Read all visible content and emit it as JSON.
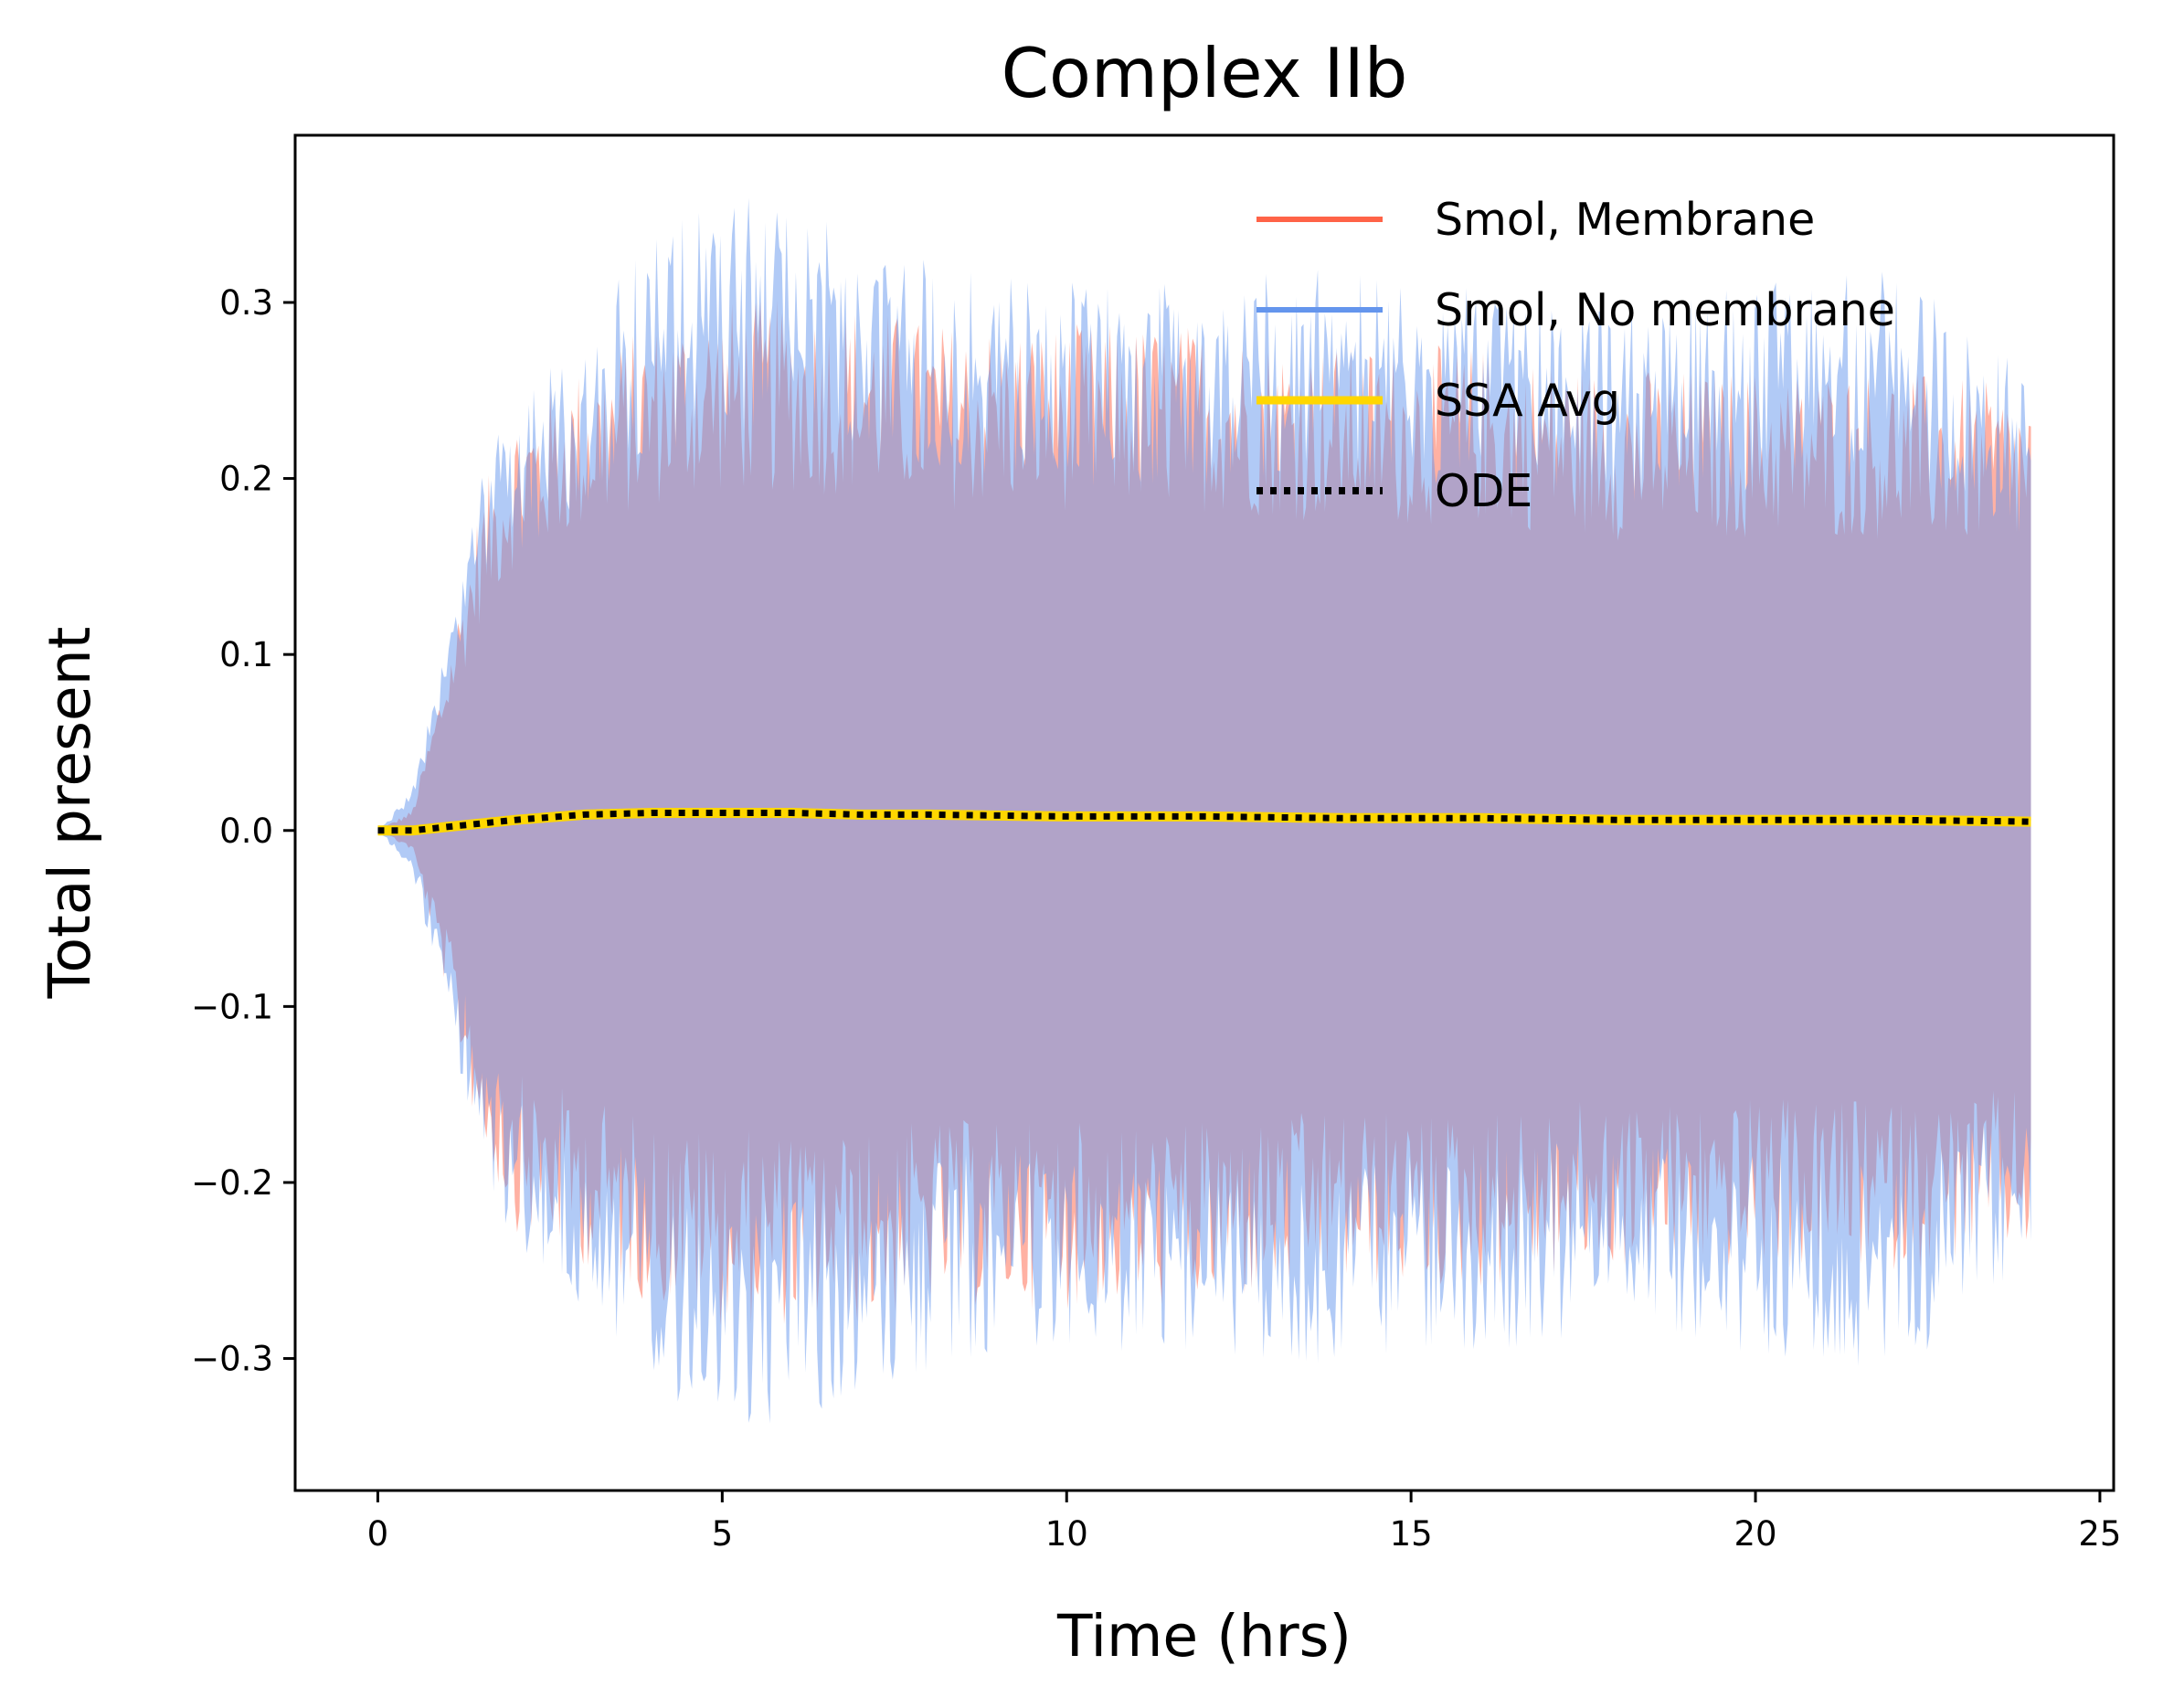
{
  "chart_data": {
    "type": "area",
    "title": "Complex IIb",
    "xlabel": "Time (hrs)",
    "ylabel": "Total present",
    "xlim": [
      -1.2,
      25.2
    ],
    "ylim": [
      -0.375,
      0.395
    ],
    "x_ticks": [
      0,
      5,
      10,
      15,
      20,
      25
    ],
    "y_ticks": [
      -0.3,
      -0.2,
      -0.1,
      0.0,
      0.1,
      0.2,
      0.3
    ],
    "x_tick_labels": [
      "0",
      "5",
      "10",
      "15",
      "20",
      "25"
    ],
    "y_tick_labels": [
      "−0.3",
      "−0.2",
      "−0.1",
      "0.0",
      "0.1",
      "0.2",
      "0.3"
    ],
    "grid": false,
    "legend_position": "top-right",
    "series": [
      {
        "name": "Smol, Membrane",
        "style": "line",
        "color": "#ff6347",
        "band_alpha": 0.5,
        "x": [
          0,
          0.5,
          1,
          1.5,
          2,
          3,
          4,
          5,
          6,
          7,
          8,
          10,
          12,
          14,
          16,
          18,
          20,
          22,
          24
        ],
        "y": [
          0,
          0.0,
          0.002,
          0.004,
          0.006,
          0.009,
          0.01,
          0.01,
          0.01,
          0.009,
          0.009,
          0.008,
          0.008,
          0.007,
          0.007,
          0.006,
          0.006,
          0.006,
          0.005
        ],
        "band_halfwidth": [
          0,
          0.01,
          0.08,
          0.16,
          0.2,
          0.22,
          0.24,
          0.25,
          0.25,
          0.25,
          0.24,
          0.24,
          0.24,
          0.23,
          0.23,
          0.22,
          0.22,
          0.22,
          0.21
        ]
      },
      {
        "name": "Smol, No membrane",
        "style": "line",
        "color": "#6495ed",
        "band_alpha": 0.5,
        "x": [
          0,
          0.5,
          1,
          1.5,
          2,
          3,
          4,
          5,
          6,
          7,
          8,
          10,
          12,
          14,
          16,
          18,
          20,
          22,
          24
        ],
        "y": [
          0,
          0.0,
          0.002,
          0.004,
          0.006,
          0.009,
          0.01,
          0.01,
          0.01,
          0.009,
          0.009,
          0.008,
          0.008,
          0.007,
          0.007,
          0.006,
          0.006,
          0.006,
          0.005
        ],
        "band_halfwidth": [
          0,
          0.02,
          0.09,
          0.17,
          0.21,
          0.24,
          0.28,
          0.3,
          0.3,
          0.28,
          0.27,
          0.26,
          0.26,
          0.27,
          0.26,
          0.25,
          0.26,
          0.27,
          0.22
        ]
      },
      {
        "name": "SSA Avg",
        "style": "line",
        "color": "#ffd700",
        "x": [
          0,
          0.5,
          1,
          1.5,
          2,
          3,
          4,
          5,
          6,
          7,
          8,
          10,
          12,
          14,
          16,
          18,
          20,
          22,
          24
        ],
        "y": [
          0,
          0.0,
          0.002,
          0.004,
          0.006,
          0.009,
          0.01,
          0.01,
          0.01,
          0.009,
          0.009,
          0.008,
          0.008,
          0.007,
          0.007,
          0.006,
          0.006,
          0.006,
          0.005
        ]
      },
      {
        "name": "ODE",
        "style": "dotted",
        "color": "#000000",
        "x": [
          0,
          0.5,
          1,
          1.5,
          2,
          3,
          4,
          5,
          6,
          7,
          8,
          10,
          12,
          14,
          16,
          18,
          20,
          22,
          24
        ],
        "y": [
          0,
          0.0,
          0.002,
          0.004,
          0.006,
          0.009,
          0.01,
          0.01,
          0.01,
          0.009,
          0.009,
          0.008,
          0.008,
          0.007,
          0.007,
          0.006,
          0.006,
          0.006,
          0.005
        ]
      }
    ]
  }
}
